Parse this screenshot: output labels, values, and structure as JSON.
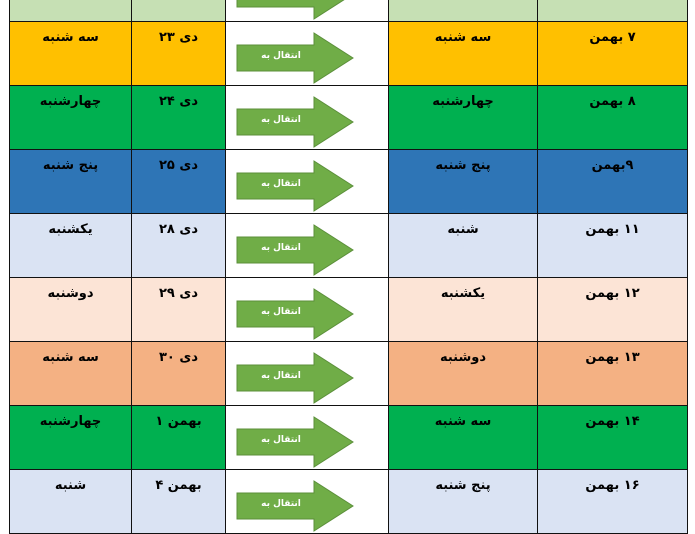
{
  "arrow_label": "انتقال به",
  "arrow_color": "#70ad47",
  "rows": [
    {
      "color": "#c6e0b4",
      "from_day": "",
      "from_date": "",
      "to_day": "",
      "to_date": ""
    },
    {
      "color": "#ffc000",
      "from_day": "سه شنبه",
      "from_date": "دی ۲۳",
      "to_day": "سه شنبه",
      "to_date": "۷ بهمن"
    },
    {
      "color": "#00b050",
      "from_day": "چهارشنبه",
      "from_date": "دی ۲۴",
      "to_day": "چهارشنبه",
      "to_date": "۸ بهمن"
    },
    {
      "color": "#2e75b6",
      "from_day": "پنج شنبه",
      "from_date": "دی ۲۵",
      "to_day": "پنج شنبه",
      "to_date": "۹بهمن"
    },
    {
      "color": "#dae3f3",
      "from_day": "یکشنبه",
      "from_date": "دی ۲۸",
      "to_day": "شنبه",
      "to_date": "۱۱ بهمن"
    },
    {
      "color": "#fce4d6",
      "from_day": "دوشنبه",
      "from_date": "دی ۲۹",
      "to_day": "یکشنبه",
      "to_date": "۱۲ بهمن"
    },
    {
      "color": "#f4b183",
      "from_day": "سه شنبه",
      "from_date": "دی ۳۰",
      "to_day": "دوشنبه",
      "to_date": "۱۳ بهمن"
    },
    {
      "color": "#00b050",
      "from_day": "چهارشنبه",
      "from_date": "بهمن ۱",
      "to_day": "سه شنبه",
      "to_date": "۱۴ بهمن"
    },
    {
      "color": "#dae3f3",
      "from_day": "شنبه",
      "from_date": "بهمن ۴",
      "to_day": "پنج شنبه",
      "to_date": "۱۶ بهمن"
    }
  ]
}
